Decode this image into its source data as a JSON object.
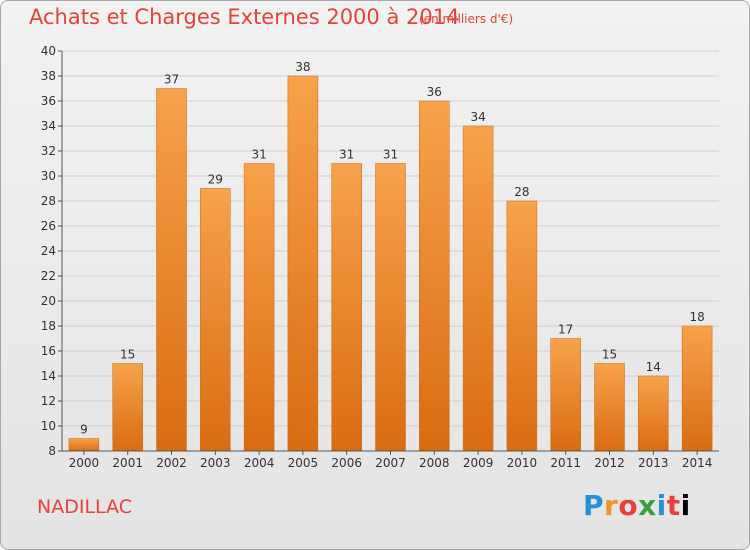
{
  "header": {
    "title": "Achats et Charges Externes 2000 à 2014",
    "subtitle": "(en milliers d'€)"
  },
  "footer": {
    "commune": "NADILLAC",
    "logo_letters": [
      "P",
      "r",
      "o",
      "x",
      "i",
      "t",
      "i"
    ]
  },
  "colors": {
    "title": "#e8413a",
    "bar_light": "#f7a24c",
    "bar_dark": "#d96c12"
  },
  "chart_data": {
    "type": "bar",
    "categories": [
      "2000",
      "2001",
      "2002",
      "2003",
      "2004",
      "2005",
      "2006",
      "2007",
      "2008",
      "2009",
      "2010",
      "2011",
      "2012",
      "2013",
      "2014"
    ],
    "values": [
      9,
      15,
      37,
      29,
      31,
      38,
      31,
      31,
      36,
      34,
      28,
      17,
      15,
      14,
      18
    ],
    "title": "Achats et Charges Externes 2000 à 2014",
    "subtitle": "(en milliers d'€)",
    "ylim": [
      8,
      40
    ],
    "yticks": [
      8,
      10,
      12,
      14,
      16,
      18,
      20,
      22,
      24,
      26,
      28,
      30,
      32,
      34,
      36,
      38,
      40
    ],
    "grid": true,
    "legend": "none"
  }
}
